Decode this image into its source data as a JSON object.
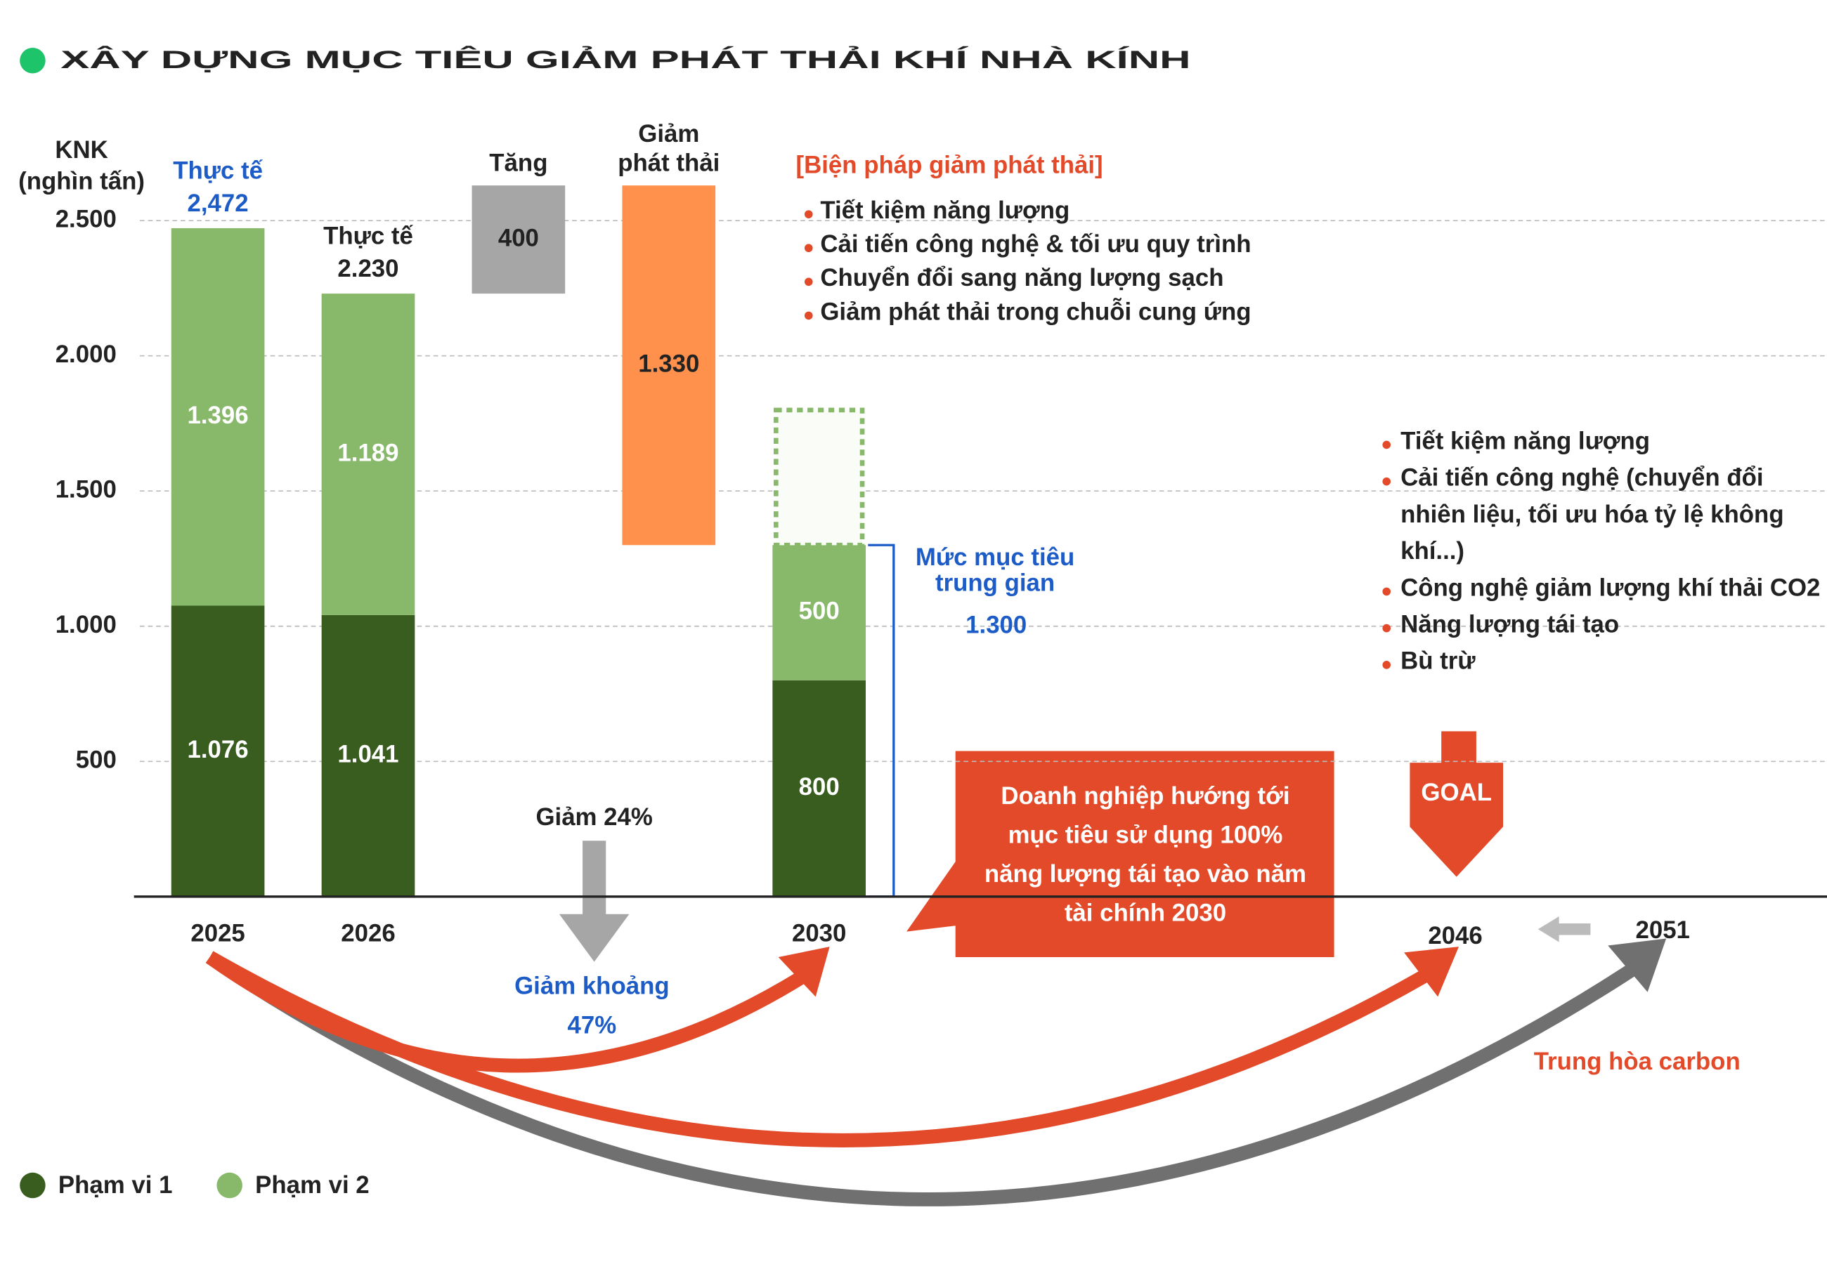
{
  "chart_data": {
    "type": "bar",
    "stacked": true,
    "title": "XÂY DỰNG MỤC TIÊU GIẢM PHÁT THẢI KHÍ NHÀ KÍNH",
    "ylabel": [
      "KNK",
      "(nghìn tấn)"
    ],
    "categories": [
      "2025",
      "2026",
      null,
      null,
      "2030"
    ],
    "series": [
      {
        "name": "Phạm vi 1",
        "color": "#385d1f",
        "values": [
          1076,
          1041,
          null,
          null,
          800
        ],
        "value_labels": [
          "1.076",
          "1.041",
          null,
          null,
          "800"
        ]
      },
      {
        "name": "Phạm vi 2",
        "color": "#88b96b",
        "values": [
          1396,
          1189,
          null,
          null,
          500
        ],
        "value_labels": [
          "1.396",
          "1.189",
          null,
          null,
          "500"
        ]
      }
    ],
    "totals": [
      {
        "title": "Thực tế",
        "value": 2472,
        "label": "2,472"
      },
      {
        "title": "Thực tế",
        "value": 2230,
        "label": "2.230"
      }
    ],
    "waterfall": [
      {
        "title": [
          "Tăng"
        ],
        "value": 400,
        "value_label": "400",
        "direction": "increase",
        "color": "#a6a6a6"
      },
      {
        "title": [
          "Giảm",
          "phát thải"
        ],
        "value": 1330,
        "value_label": "1.330",
        "direction": "decrease",
        "color": "#ff914d"
      }
    ],
    "target": {
      "title": [
        "Mức mục tiêu",
        "trung gian"
      ],
      "value": 1300,
      "value_label": "1.300",
      "color": "#1d5cc6"
    },
    "ylim": [
      0,
      2700
    ],
    "yticks": [
      500,
      {
        "value": 1000,
        "label": "1.000"
      },
      {
        "value": 1500,
        "label": "1.500"
      },
      {
        "value": 2000,
        "label": "2.000"
      },
      {
        "value": 2500,
        "label": "2.500"
      }
    ],
    "grid": true,
    "timeline": [
      "2046",
      "2051"
    ],
    "annotations": {
      "reduction_2026": "Giảm 24%",
      "reduction_2030": [
        "Giảm khoảng",
        "47%"
      ],
      "measures_title": "[Biện pháp giảm phát thải]",
      "measures": [
        "Tiết kiệm năng lượng",
        "Cải tiến công nghệ & tối ưu quy trình",
        "Chuyển đổi sang năng lượng sạch",
        "Giảm phát thải trong chuỗi cung ứng"
      ],
      "long_term_measures": [
        [
          "Tiết kiệm năng lượng"
        ],
        [
          "Cải tiến công nghệ (chuyển đổi",
          "nhiên liệu, tối ưu hóa tỷ lệ không",
          "khí...)"
        ],
        [
          "Công nghệ giảm lượng khí thải CO2"
        ],
        [
          "Năng lượng tái tạo"
        ],
        [
          "Bù trừ"
        ]
      ],
      "callout": [
        "Doanh nghiệp hướng tới",
        "mục tiêu sử dụng 100%",
        "năng lượng tái tạo vào năm",
        "tài chính 2030"
      ],
      "goal": "GOAL",
      "neutral": "Trung hòa carbon"
    }
  }
}
